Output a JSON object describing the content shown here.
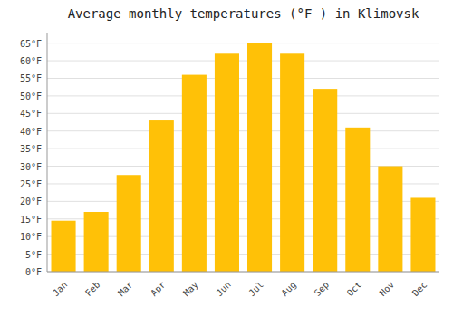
{
  "chart_data": {
    "type": "bar",
    "title": "Average monthly temperatures (°F ) in Klimovsk",
    "categories": [
      "Jan",
      "Feb",
      "Mar",
      "Apr",
      "May",
      "Jun",
      "Jul",
      "Aug",
      "Sep",
      "Oct",
      "Nov",
      "Dec"
    ],
    "values": [
      14.5,
      17,
      27.5,
      43,
      56,
      62,
      65,
      62,
      52,
      41,
      30,
      21
    ],
    "color": "#FFC107",
    "ylim": [
      0,
      68
    ],
    "yticks": [
      {
        "value": 0,
        "label": "0°F"
      },
      {
        "value": 5,
        "label": "5°F"
      },
      {
        "value": 10,
        "label": "10°F"
      },
      {
        "value": 15,
        "label": "15°F"
      },
      {
        "value": 20,
        "label": "20°F"
      },
      {
        "value": 25,
        "label": "25°F"
      },
      {
        "value": 30,
        "label": "30°F"
      },
      {
        "value": 35,
        "label": "35°F"
      },
      {
        "value": 40,
        "label": "40°F"
      },
      {
        "value": 45,
        "label": "45°F"
      },
      {
        "value": 50,
        "label": "50°F"
      },
      {
        "value": 55,
        "label": "55°F"
      },
      {
        "value": 60,
        "label": "60°F"
      },
      {
        "value": 65,
        "label": "65°F"
      }
    ],
    "grid": true
  }
}
